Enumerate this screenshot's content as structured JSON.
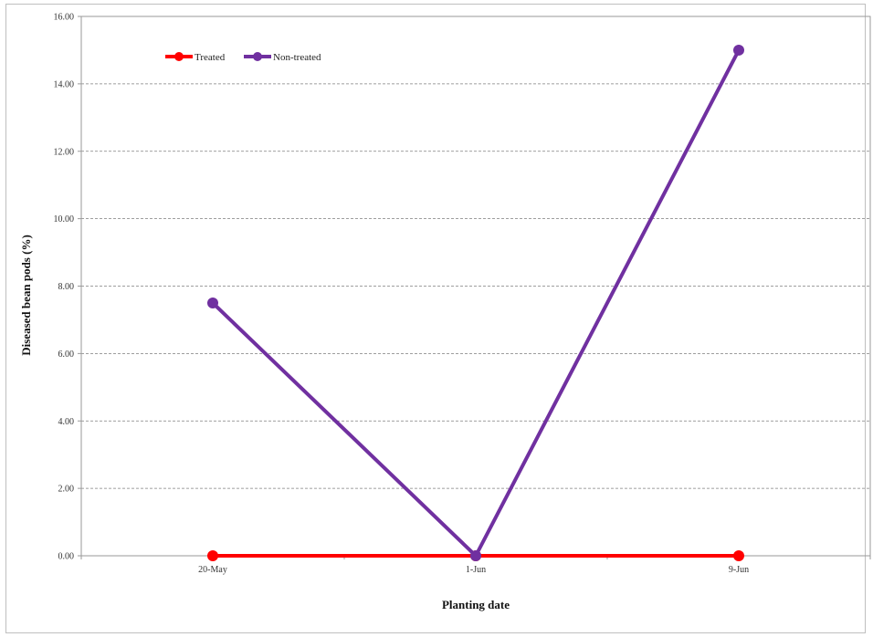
{
  "chart_data": {
    "type": "line",
    "categories": [
      "20-May",
      "1-Jun",
      "9-Jun"
    ],
    "series": [
      {
        "name": "Treated",
        "values": [
          0.0,
          0.0,
          0.0
        ],
        "color": "#ff0000"
      },
      {
        "name": "Non-treated",
        "values": [
          7.5,
          0.0,
          15.0
        ],
        "color": "#7030a0"
      }
    ],
    "xlabel": "Planting date",
    "ylabel": "Diseased bean pods (%)",
    "ylim": [
      0,
      16
    ],
    "yticks": [
      "0.00",
      "2.00",
      "4.00",
      "6.00",
      "8.00",
      "10.00",
      "12.00",
      "14.00",
      "16.00"
    ],
    "grid": true,
    "legend_position": "top-left"
  }
}
